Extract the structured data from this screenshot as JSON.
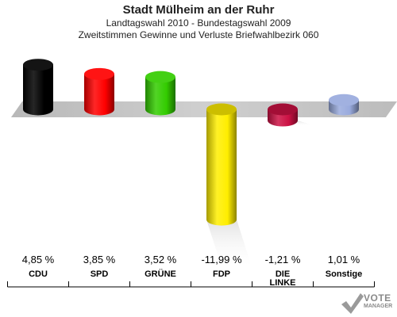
{
  "header": {
    "title": "Stadt Mülheim an der Ruhr",
    "subtitle1": "Landtagswahl 2010 - Bundestagswahl 2009",
    "subtitle2": "Zweitstimmen Gewinne und Verluste Briefwahlbezirk 060"
  },
  "logo": {
    "text": "VOTE",
    "subtext": "MANAGER"
  },
  "chart_data": {
    "type": "bar",
    "categories": [
      "CDU",
      "SPD",
      "GRÜNE",
      "FDP",
      "DIE LINKE",
      "Sonstige"
    ],
    "category_lines": [
      [
        "CDU"
      ],
      [
        "SPD"
      ],
      [
        "GRÜNE"
      ],
      [
        "FDP"
      ],
      [
        "DIE",
        "LINKE"
      ],
      [
        "Sonstige"
      ]
    ],
    "values": [
      4.85,
      3.85,
      3.52,
      -11.99,
      -1.21,
      1.01
    ],
    "value_labels": [
      "4,85 %",
      "3,85 %",
      "3,52 %",
      "-11,99 %",
      "-1,21 %",
      "1,01 %"
    ],
    "colors": [
      "#000000",
      "#ff0000",
      "#33cc00",
      "#ffee00",
      "#cc1144",
      "#99aadd"
    ],
    "ylim": [
      -12,
      5
    ],
    "grid": false,
    "legend": "none"
  }
}
